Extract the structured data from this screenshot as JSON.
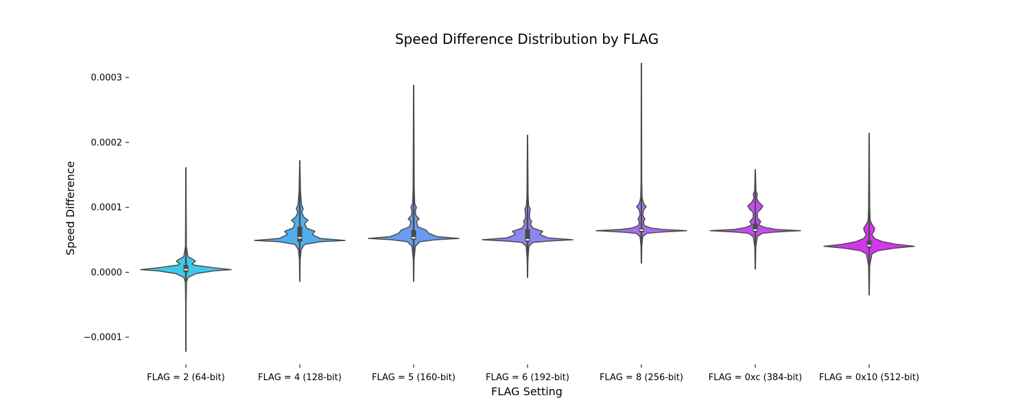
{
  "chart_data": {
    "type": "violin",
    "title": "Speed Difference Distribution by FLAG",
    "xlabel": "FLAG Setting",
    "ylabel": "Speed Difference",
    "ylim": [
      -0.000142,
      0.000335
    ],
    "yticks": [
      -0.0001,
      0.0,
      0.0001,
      0.0002,
      0.0003
    ],
    "ytick_labels": [
      "−0.0001",
      "0.0000",
      "0.0001",
      "0.0002",
      "0.0003"
    ],
    "grid": false,
    "legend": "none",
    "categories": [
      "FLAG = 2 (64-bit)",
      "FLAG = 4 (128-bit)",
      "FLAG = 5 (160-bit)",
      "FLAG = 6 (192-bit)",
      "FLAG = 8 (256-bit)",
      "FLAG = 0xc (384-bit)",
      "FLAG = 0x10 (512-bit)"
    ],
    "colors": [
      "#3ec9ea",
      "#4eb0ed",
      "#6a9bf0",
      "#8a88ef",
      "#a56ff0",
      "#c14ef0",
      "#d634f0"
    ],
    "outline_color": "#4a4a4a",
    "violins": [
      {
        "min": -0.000122,
        "q1": 0.0,
        "median": 4e-06,
        "q3": 1.1e-05,
        "max": 0.000161,
        "whisker_low": -8e-06,
        "whisker_high": 2.2e-05,
        "profile": [
          [
            -0.000122,
            0.2
          ],
          [
            -5e-05,
            0.3
          ],
          [
            -1.5e-05,
            0.8
          ],
          [
            -8e-06,
            3
          ],
          [
            -2e-06,
            15
          ],
          [
            2e-06,
            40
          ],
          [
            4e-06,
            66
          ],
          [
            7e-06,
            40
          ],
          [
            1.1e-05,
            12
          ],
          [
            1.3e-05,
            9
          ],
          [
            1.7e-05,
            14
          ],
          [
            2e-05,
            10
          ],
          [
            2.4e-05,
            3
          ],
          [
            4e-05,
            0.6
          ],
          [
            0.000161,
            0.2
          ]
        ]
      },
      {
        "min": -1.4e-05,
        "q1": 4.7e-05,
        "median": 5.3e-05,
        "q3": 7e-05,
        "max": 0.000172,
        "whisker_low": 3.5e-05,
        "whisker_high": 0.000102,
        "profile": [
          [
            -1.4e-05,
            0.2
          ],
          [
            2e-05,
            0.6
          ],
          [
            3.5e-05,
            2
          ],
          [
            4.3e-05,
            7
          ],
          [
            4.7e-05,
            30
          ],
          [
            4.9e-05,
            66
          ],
          [
            5.2e-05,
            30
          ],
          [
            5.8e-05,
            18
          ],
          [
            6.3e-05,
            22
          ],
          [
            6.8e-05,
            10
          ],
          [
            7.5e-05,
            7
          ],
          [
            8e-05,
            12
          ],
          [
            8.5e-05,
            6
          ],
          [
            9.2e-05,
            3
          ],
          [
            9.8e-05,
            5
          ],
          [
            0.000104,
            2.5
          ],
          [
            0.000125,
            1
          ],
          [
            0.000172,
            0.2
          ]
        ]
      },
      {
        "min": -1.4e-05,
        "q1": 5e-05,
        "median": 5.3e-05,
        "q3": 6.5e-05,
        "max": 0.000288,
        "whisker_low": 4e-05,
        "whisker_high": 9.5e-05,
        "profile": [
          [
            -1.4e-05,
            0.2
          ],
          [
            2e-05,
            0.6
          ],
          [
            4e-05,
            2.5
          ],
          [
            4.7e-05,
            9
          ],
          [
            5e-05,
            32
          ],
          [
            5.2e-05,
            66
          ],
          [
            5.5e-05,
            34
          ],
          [
            6e-05,
            22
          ],
          [
            6.5e-05,
            18
          ],
          [
            7e-05,
            6
          ],
          [
            7.8e-05,
            4
          ],
          [
            8.2e-05,
            8
          ],
          [
            8.8e-05,
            3
          ],
          [
            9.5e-05,
            2.5
          ],
          [
            0.0001,
            4
          ],
          [
            0.000106,
            1.5
          ],
          [
            0.00013,
            0.8
          ],
          [
            0.000288,
            0.2
          ]
        ]
      },
      {
        "min": -8e-06,
        "q1": 4.7e-05,
        "median": 5e-05,
        "q3": 6.6e-05,
        "max": 0.000211,
        "whisker_low": 4e-05,
        "whisker_high": 9e-05,
        "profile": [
          [
            -8e-06,
            0.2
          ],
          [
            2e-05,
            0.6
          ],
          [
            4e-05,
            2
          ],
          [
            4.6e-05,
            8
          ],
          [
            4.8e-05,
            30
          ],
          [
            5e-05,
            66
          ],
          [
            5.3e-05,
            30
          ],
          [
            5.8e-05,
            18
          ],
          [
            6.3e-05,
            22
          ],
          [
            6.8e-05,
            8
          ],
          [
            7.4e-05,
            4
          ],
          [
            7.8e-05,
            6
          ],
          [
            8.3e-05,
            3
          ],
          [
            9.2e-05,
            3
          ],
          [
            9.7e-05,
            4
          ],
          [
            0.000103,
            1.5
          ],
          [
            0.00012,
            0.8
          ],
          [
            0.000211,
            0.2
          ]
        ]
      },
      {
        "min": 1.4e-05,
        "q1": 6.2e-05,
        "median": 6.5e-05,
        "q3": 6.8e-05,
        "max": 0.000322,
        "whisker_low": 5.5e-05,
        "whisker_high": 7.8e-05,
        "profile": [
          [
            1.4e-05,
            0.2
          ],
          [
            4e-05,
            0.6
          ],
          [
            5.5e-05,
            2
          ],
          [
            6e-05,
            8
          ],
          [
            6.2e-05,
            30
          ],
          [
            6.4e-05,
            66
          ],
          [
            6.6e-05,
            30
          ],
          [
            6.8e-05,
            14
          ],
          [
            7.2e-05,
            4
          ],
          [
            7.8e-05,
            3
          ],
          [
            8.2e-05,
            5
          ],
          [
            8.8e-05,
            2
          ],
          [
            9.6e-05,
            3
          ],
          [
            0.000101,
            7
          ],
          [
            0.000106,
            3
          ],
          [
            0.000115,
            1
          ],
          [
            0.00014,
            0.5
          ],
          [
            0.000322,
            0.2
          ]
        ]
      },
      {
        "min": 5e-06,
        "q1": 6.2e-05,
        "median": 6.5e-05,
        "q3": 7.5e-05,
        "max": 0.000158,
        "whisker_low": 5.5e-05,
        "whisker_high": 8.2e-05,
        "profile": [
          [
            5e-06,
            0.2
          ],
          [
            4e-05,
            0.8
          ],
          [
            5.5e-05,
            3
          ],
          [
            6e-05,
            10
          ],
          [
            6.2e-05,
            30
          ],
          [
            6.4e-05,
            66
          ],
          [
            6.6e-05,
            30
          ],
          [
            6.9e-05,
            14
          ],
          [
            7.3e-05,
            5
          ],
          [
            7.8e-05,
            8
          ],
          [
            8.4e-05,
            3
          ],
          [
            9.2e-05,
            3
          ],
          [
            9.7e-05,
            8
          ],
          [
            0.000102,
            11
          ],
          [
            0.000108,
            5
          ],
          [
            0.000114,
            2
          ],
          [
            0.00012,
            3
          ],
          [
            0.000125,
            1
          ],
          [
            0.000158,
            0.2
          ]
        ]
      },
      {
        "min": -3.5e-05,
        "q1": 3.8e-05,
        "median": 4.1e-05,
        "q3": 4.9e-05,
        "max": 0.000214,
        "whisker_low": 3e-05,
        "whisker_high": 6.5e-05,
        "profile": [
          [
            -3.5e-05,
            0.2
          ],
          [
            1e-05,
            0.8
          ],
          [
            2.8e-05,
            4
          ],
          [
            3.3e-05,
            12
          ],
          [
            3.7e-05,
            36
          ],
          [
            4e-05,
            66
          ],
          [
            4.3e-05,
            40
          ],
          [
            4.7e-05,
            20
          ],
          [
            5.2e-05,
            8
          ],
          [
            5.8e-05,
            4
          ],
          [
            6.3e-05,
            7
          ],
          [
            6.8e-05,
            8
          ],
          [
            7.4e-05,
            4
          ],
          [
            8e-05,
            1.5
          ],
          [
            0.0001,
            0.8
          ],
          [
            0.000214,
            0.2
          ]
        ]
      }
    ]
  }
}
